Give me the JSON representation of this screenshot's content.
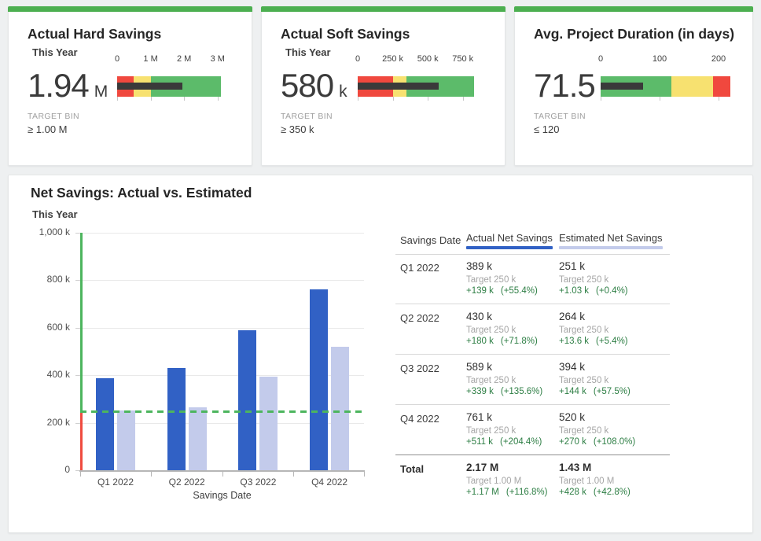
{
  "colors": {
    "page_bg": "#eef0f1",
    "card_accent": "#4caf50",
    "actual_blue": "#3161c5",
    "estimated_light": "#c3cbeb",
    "target_green": "#4db55e",
    "axis_red": "#ef4b3f",
    "delta_green": "#2d7e44",
    "measure_dark": "#3a3a3a",
    "bullet_red": "#f0483e",
    "bullet_yellow": "#f7e170",
    "bullet_green": "#5cbb6a"
  },
  "chart_data": [
    {
      "type": "bullet",
      "title": "Actual Hard Savings",
      "period": "This Year",
      "value": 1940000,
      "value_text": "1.94",
      "value_unit": "M",
      "target_label": "TARGET BIN",
      "target_bin": "≥ 1.00 M",
      "range_max": 3100000,
      "ticks": [
        {
          "value": 0,
          "label": "0"
        },
        {
          "value": 1000000,
          "label": "1 M"
        },
        {
          "value": 2000000,
          "label": "2 M"
        },
        {
          "value": 3000000,
          "label": "3 M"
        }
      ],
      "bands": [
        {
          "name": "red",
          "from": 0,
          "to": 500000,
          "color": "#f0483e"
        },
        {
          "name": "yellow",
          "from": 500000,
          "to": 1000000,
          "color": "#f7e170"
        },
        {
          "name": "green",
          "from": 1000000,
          "to": 3100000,
          "color": "#5cbb6a"
        }
      ]
    },
    {
      "type": "bullet",
      "title": "Actual Soft Savings",
      "period": "This Year",
      "value": 580000,
      "value_text": "580",
      "value_unit": "k",
      "target_label": "TARGET BIN",
      "target_bin": "≥ 350 k",
      "range_max": 830000,
      "ticks": [
        {
          "value": 0,
          "label": "0"
        },
        {
          "value": 250000,
          "label": "250 k"
        },
        {
          "value": 500000,
          "label": "500 k"
        },
        {
          "value": 750000,
          "label": "750 k"
        }
      ],
      "bands": [
        {
          "name": "red",
          "from": 0,
          "to": 250000,
          "color": "#f0483e"
        },
        {
          "name": "yellow",
          "from": 250000,
          "to": 350000,
          "color": "#f7e170"
        },
        {
          "name": "green",
          "from": 350000,
          "to": 830000,
          "color": "#5cbb6a"
        }
      ]
    },
    {
      "type": "bullet",
      "title": "Avg. Project Duration (in days)",
      "period": "",
      "value": 71.5,
      "value_text": "71.5",
      "value_unit": "",
      "target_label": "TARGET BIN",
      "target_bin": "≤ 120",
      "range_max": 220,
      "ticks": [
        {
          "value": 0,
          "label": "0"
        },
        {
          "value": 100,
          "label": "100"
        },
        {
          "value": 200,
          "label": "200"
        }
      ],
      "bands": [
        {
          "name": "green",
          "from": 0,
          "to": 120,
          "color": "#5cbb6a"
        },
        {
          "name": "yellow",
          "from": 120,
          "to": 190,
          "color": "#f7e170"
        },
        {
          "name": "red",
          "from": 190,
          "to": 220,
          "color": "#f0483e"
        }
      ]
    },
    {
      "type": "bar",
      "title": "Net Savings: Actual vs. Estimated",
      "subtitle": "This Year",
      "xlabel": "Savings Date",
      "ylabel": "",
      "ylim": [
        0,
        1000000
      ],
      "grid": true,
      "target_line": 250000,
      "categories": [
        "Q1 2022",
        "Q2 2022",
        "Q3 2022",
        "Q4 2022"
      ],
      "series": [
        {
          "name": "Actual Net Savings",
          "color": "#3161c5",
          "values": [
            389000,
            430000,
            589000,
            761000
          ]
        },
        {
          "name": "Estimated Net Savings",
          "color": "#c3cbeb",
          "values": [
            251000,
            264000,
            394000,
            520000
          ]
        }
      ],
      "y_ticks": [
        {
          "value": 0,
          "label": "0"
        },
        {
          "value": 200000,
          "label": "200 k"
        },
        {
          "value": 400000,
          "label": "400 k"
        },
        {
          "value": 600000,
          "label": "600 k"
        },
        {
          "value": 800000,
          "label": "800 k"
        },
        {
          "value": 1000000,
          "label": "1,000 k"
        }
      ]
    },
    {
      "type": "table",
      "columns": [
        "Savings Date",
        "Actual Net Savings",
        "Estimated Net Savings"
      ],
      "rows": [
        {
          "label": "Q1 2022",
          "total": false,
          "cells": [
            {
              "value": "389 k",
              "target": "Target 250 k",
              "delta": "+139 k",
              "pct": "(+55.4%)"
            },
            {
              "value": "251 k",
              "target": "Target 250 k",
              "delta": "+1.03 k",
              "pct": "(+0.4%)"
            }
          ]
        },
        {
          "label": "Q2 2022",
          "total": false,
          "cells": [
            {
              "value": "430 k",
              "target": "Target 250 k",
              "delta": "+180 k",
              "pct": "(+71.8%)"
            },
            {
              "value": "264 k",
              "target": "Target 250 k",
              "delta": "+13.6 k",
              "pct": "(+5.4%)"
            }
          ]
        },
        {
          "label": "Q3 2022",
          "total": false,
          "cells": [
            {
              "value": "589 k",
              "target": "Target 250 k",
              "delta": "+339 k",
              "pct": "(+135.6%)"
            },
            {
              "value": "394 k",
              "target": "Target 250 k",
              "delta": "+144 k",
              "pct": "(+57.5%)"
            }
          ]
        },
        {
          "label": "Q4 2022",
          "total": false,
          "cells": [
            {
              "value": "761 k",
              "target": "Target 250 k",
              "delta": "+511 k",
              "pct": "(+204.4%)"
            },
            {
              "value": "520 k",
              "target": "Target 250 k",
              "delta": "+270 k",
              "pct": "(+108.0%)"
            }
          ]
        },
        {
          "label": "Total",
          "total": true,
          "cells": [
            {
              "value": "2.17 M",
              "target": "Target 1.00 M",
              "delta": "+1.17 M",
              "pct": "(+116.8%)"
            },
            {
              "value": "1.43 M",
              "target": "Target 1.00 M",
              "delta": "+428 k",
              "pct": "(+42.8%)"
            }
          ]
        }
      ]
    }
  ]
}
